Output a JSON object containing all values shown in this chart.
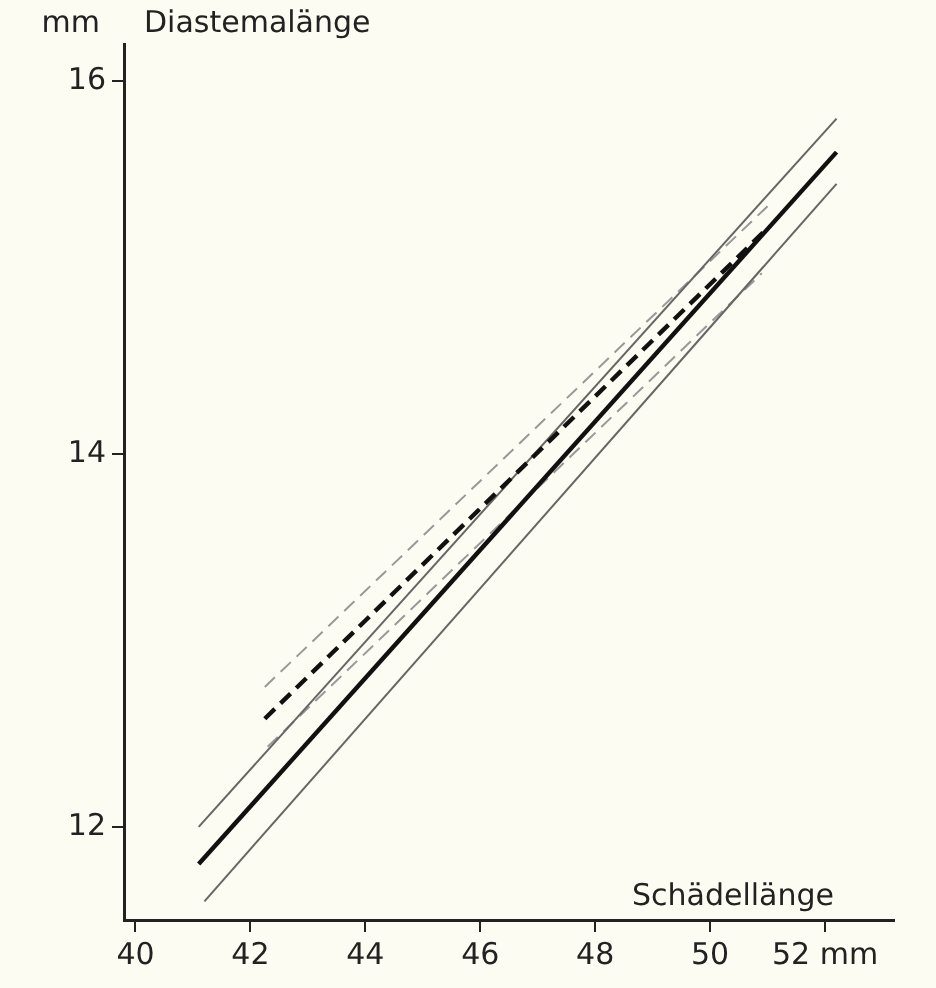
{
  "chart_data": {
    "type": "line",
    "ylabel": "Diastemalänge",
    "xlabel": "Schädellänge",
    "annotations": [
      "mm"
    ],
    "xlim": [
      39.8,
      53.2
    ],
    "xticks": [
      40,
      42,
      44,
      46,
      48,
      50,
      {
        "value": 52,
        "label": "52 mm"
      }
    ],
    "ylim": [
      11.5,
      16.2
    ],
    "yticks": [
      12,
      14,
      16
    ],
    "grid": false,
    "legend": false,
    "marker": "none",
    "series": [
      {
        "color": "#111111",
        "line_style": "solid",
        "x": [
          41.1,
          52.2
        ],
        "values": [
          11.8,
          15.62
        ]
      },
      {
        "color": "#111111",
        "line_style": "dashed",
        "x": [
          42.25,
          50.96
        ],
        "values": [
          12.58,
          15.2
        ]
      },
      {
        "color": "#666666",
        "line_style": "solid",
        "x": [
          41.1,
          52.2
        ],
        "values": [
          12.0,
          15.8
        ]
      },
      {
        "color": "#666666",
        "line_style": "solid",
        "x": [
          41.2,
          52.2
        ],
        "values": [
          11.6,
          15.45
        ]
      },
      {
        "color": "#999999",
        "line_style": "dashed",
        "x": [
          42.25,
          51.0
        ],
        "values": [
          12.75,
          15.33
        ]
      },
      {
        "color": "#999999",
        "line_style": "dashed",
        "x": [
          42.3,
          50.9
        ],
        "values": [
          12.43,
          14.97
        ]
      }
    ]
  }
}
